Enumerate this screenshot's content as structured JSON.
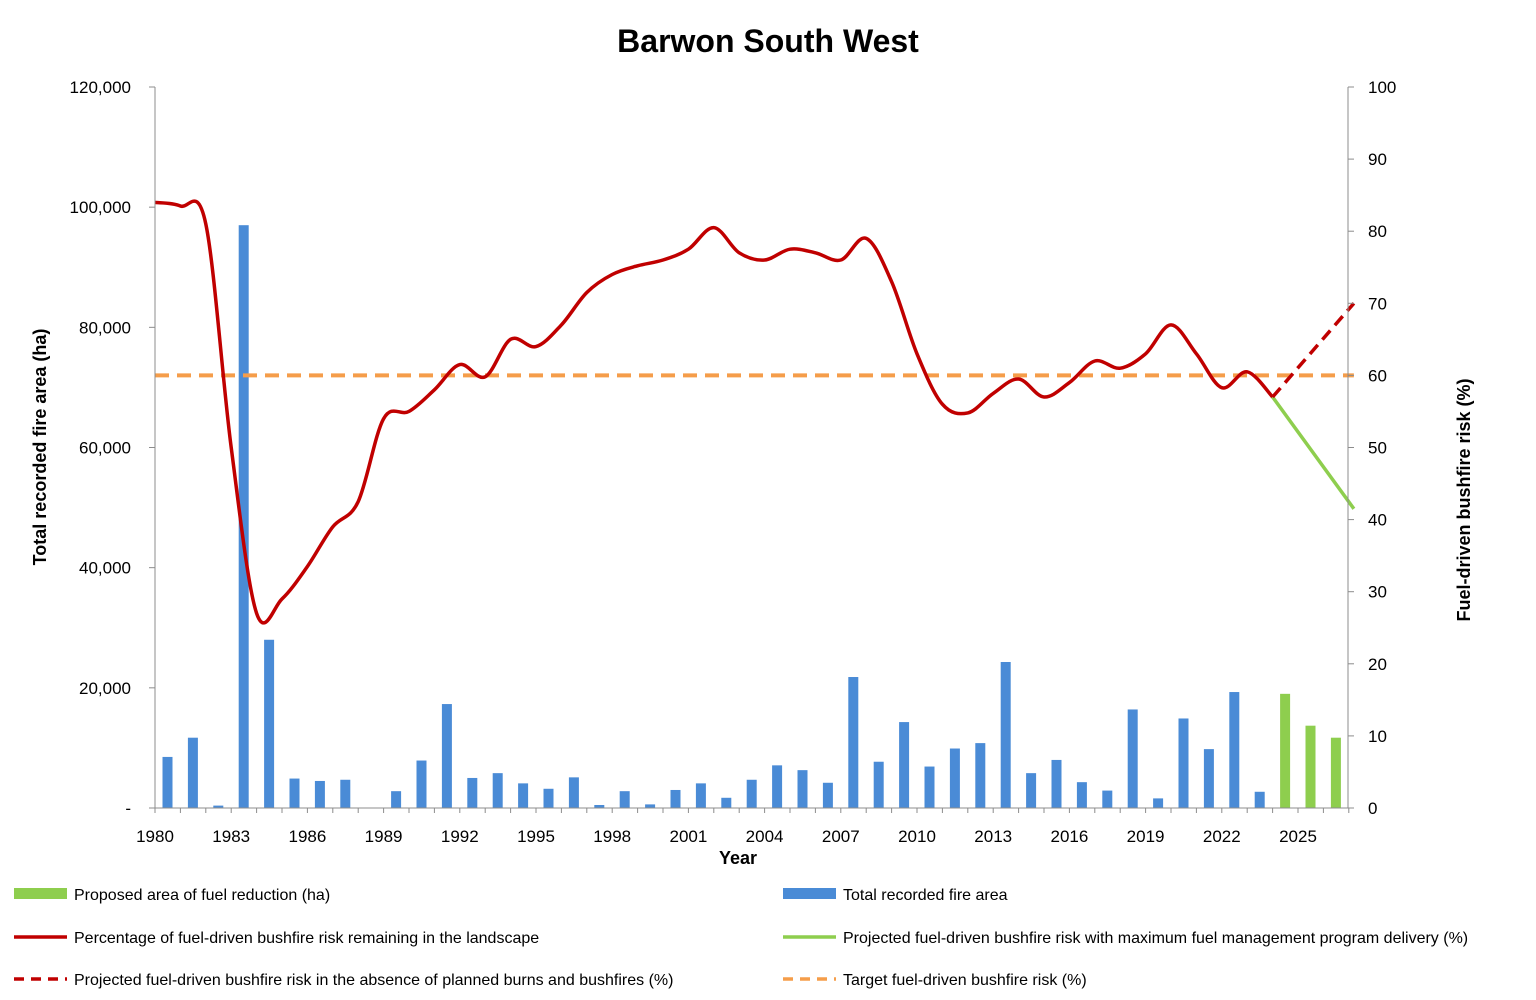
{
  "chart_data": {
    "type": "bar",
    "title": "Barwon South West",
    "xlabel": "Year",
    "ylabel_left": "Total recorded fire area (ha)",
    "ylabel_right": "Fuel-driven bushfire risk (%)",
    "x_tick_labels": [
      "1980",
      "1983",
      "1986",
      "1989",
      "1992",
      "1995",
      "1998",
      "2001",
      "2004",
      "2007",
      "2010",
      "2013",
      "2016",
      "2019",
      "2022",
      "2025"
    ],
    "y_left_tick_labels": [
      "-",
      "20,000",
      "40,000",
      "60,000",
      "80,000",
      "100,000",
      "120,000"
    ],
    "y_right_tick_labels": [
      "0",
      "10",
      "20",
      "30",
      "40",
      "50",
      "60",
      "70",
      "80",
      "90",
      "100"
    ],
    "ylim_left": [
      0,
      120000
    ],
    "ylim_right": [
      0,
      100
    ],
    "xlim": [
      1980,
      2027.5
    ],
    "grid": false,
    "legend_position": "bottom",
    "colors": {
      "fire_bars": "#4a8bd6",
      "fuel_bars": "#8ece4e",
      "risk_line": "#c00000",
      "projected_burn_line": "#8ece4e",
      "target_line": "#f59d4a"
    },
    "series": [
      {
        "name": "Total recorded fire area",
        "kind": "bar",
        "x": [
          1980,
          1981,
          1982,
          1983,
          1984,
          1985,
          1986,
          1987,
          1988,
          1989,
          1990,
          1991,
          1992,
          1993,
          1994,
          1995,
          1996,
          1997,
          1998,
          1999,
          2000,
          2001,
          2002,
          2003,
          2004,
          2005,
          2006,
          2007,
          2008,
          2009,
          2010,
          2011,
          2012,
          2013,
          2014,
          2015,
          2016,
          2017,
          2018,
          2019,
          2020,
          2021,
          2022,
          2023
        ],
        "values": [
          8500,
          11700,
          400,
          97000,
          28000,
          4900,
          4500,
          4700,
          0,
          2800,
          7900,
          17300,
          5000,
          5800,
          4100,
          3200,
          5100,
          500,
          2800,
          600,
          3000,
          4100,
          1700,
          4700,
          7100,
          6300,
          4200,
          21800,
          7700,
          14300,
          6900,
          9900,
          10800,
          24300,
          5800,
          8000,
          4300,
          2900,
          16400,
          1600,
          14900,
          9800,
          19300,
          2700
        ]
      },
      {
        "name": "Proposed area of fuel reduction (ha)",
        "kind": "bar",
        "x": [
          2024,
          2025,
          2026
        ],
        "values": [
          19000,
          13700,
          11700
        ]
      },
      {
        "name": "Percentage of fuel-driven bushfire risk remaining in the landscape",
        "kind": "line",
        "x": [
          1980,
          1981,
          1982,
          1983,
          1984,
          1985,
          1986,
          1987,
          1988,
          1989,
          1990,
          1991,
          1992,
          1993,
          1994,
          1995,
          1996,
          1997,
          1998,
          1999,
          2000,
          2001,
          2002,
          2003,
          2004,
          2005,
          2006,
          2007,
          2008,
          2009,
          2010,
          2011,
          2012,
          2013,
          2014,
          2015,
          2016,
          2017,
          2018,
          2019,
          2020,
          2021,
          2022,
          2023,
          2024
        ],
        "values": [
          84,
          83.5,
          81,
          50,
          27,
          29,
          33.5,
          39,
          42.5,
          54,
          55,
          58,
          61.5,
          59.8,
          65,
          64,
          67,
          71.5,
          74,
          75.2,
          76,
          77.5,
          80.5,
          77,
          76,
          77.5,
          77,
          76,
          79,
          73,
          63,
          56,
          54.8,
          57.5,
          59.5,
          57,
          59,
          62,
          61,
          63,
          67,
          63,
          58.3,
          60.5,
          57
        ]
      },
      {
        "name": "Projected fuel-driven bushfire risk with maximum fuel management program delivery  (%)",
        "kind": "line",
        "x": [
          2024,
          2027.2
        ],
        "values": [
          57,
          41.5
        ]
      },
      {
        "name": "Projected fuel-driven bushfire risk in the absence of planned burns and bushfires (%)",
        "kind": "line",
        "style": "dashed",
        "x": [
          2024,
          2027.2
        ],
        "values": [
          57,
          70
        ]
      },
      {
        "name": "Target fuel-driven bushfire risk (%)",
        "kind": "line",
        "style": "dashed",
        "x": [
          1980,
          2027.2
        ],
        "values": [
          60,
          60
        ]
      }
    ],
    "legend": [
      {
        "label": "Proposed area of fuel reduction (ha)",
        "symbol": "bar",
        "color": "#8ece4e"
      },
      {
        "label": "Total recorded fire area",
        "symbol": "bar",
        "color": "#4a8bd6"
      },
      {
        "label": "Percentage of fuel-driven bushfire risk remaining in the landscape",
        "symbol": "line",
        "color": "#c00000"
      },
      {
        "label": "Projected fuel-driven bushfire risk with maximum fuel management program delivery  (%)",
        "symbol": "line",
        "color": "#8ece4e"
      },
      {
        "label": "Projected fuel-driven bushfire risk in the absence of planned burns and bushfires (%)",
        "symbol": "dashed",
        "color": "#c00000"
      },
      {
        "label": "Target fuel-driven bushfire risk (%)",
        "symbol": "dashed",
        "color": "#f59d4a"
      }
    ]
  }
}
